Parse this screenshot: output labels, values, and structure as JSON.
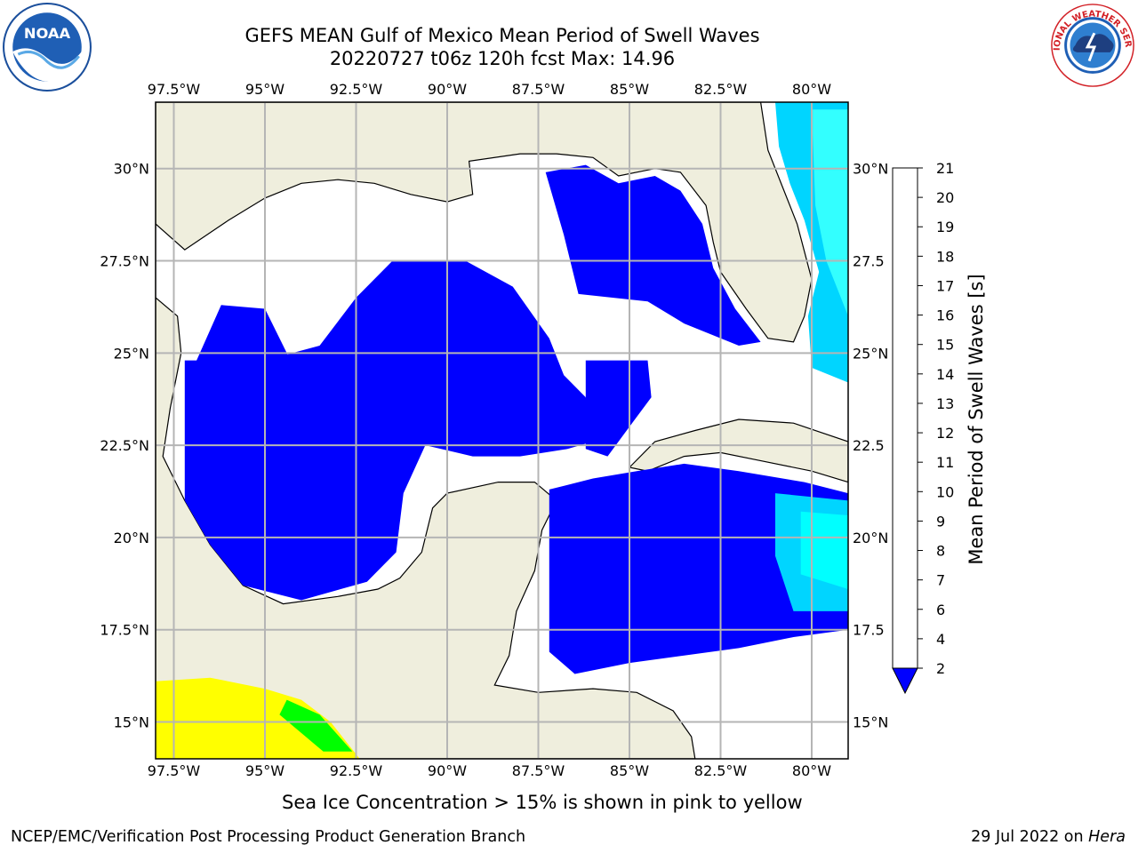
{
  "title": {
    "line1": "GEFS MEAN Gulf of Mexico Mean Period of Swell Waves",
    "line2": "20220727 t06z 120h fcst   Max: 14.96"
  },
  "map": {
    "lon_labels": [
      "97.5°W",
      "95°W",
      "92.5°W",
      "90°W",
      "87.5°W",
      "85°W",
      "82.5°W",
      "80°W"
    ],
    "lat_labels_left": [
      "30°N",
      "27.5°N",
      "25°N",
      "22.5°N",
      "20°N",
      "17.5°N",
      "15°N"
    ],
    "lat_labels_right": [
      "30°N",
      "27.5",
      "25°N",
      "22.5",
      "20°N",
      "17.5",
      "15°N"
    ],
    "lon_range": [
      -98,
      -79
    ],
    "lat_range": [
      14,
      31.8
    ],
    "land_color": "#efeedd",
    "ocean_fill": "#0000ff"
  },
  "colorbar": {
    "label": "Mean Period of Swell Waves [s]",
    "ticks": [
      "2",
      "4",
      "6",
      "7",
      "8",
      "9",
      "10",
      "11",
      "12",
      "13",
      "14",
      "15",
      "16",
      "17",
      "18",
      "19",
      "20",
      "21"
    ],
    "colors": [
      "#0066ff",
      "#00d5ff",
      "#00ffff",
      "#33ffff",
      "#99ffff",
      "#4cff7f",
      "#33ee33",
      "#00ff00",
      "#66ff00",
      "#99ff00",
      "#ccff00",
      "#e5ff00",
      "#ffff00",
      "#ffcc00",
      "#ff9900",
      "#ff6600",
      "#ff3300",
      "#ff0000"
    ],
    "extend_color": "#0000ff"
  },
  "footer": {
    "subtitle": "Sea Ice Concentration > 15% is shown in pink to yellow",
    "left": "NCEP/EMC/Verification Post Processing Product Generation Branch",
    "right_date": "29 Jul 2022 on ",
    "right_host": "Hera"
  },
  "logos": {
    "noaa_text": "NOAA",
    "nws_text": "NATIONAL WEATHER SERVICE"
  }
}
